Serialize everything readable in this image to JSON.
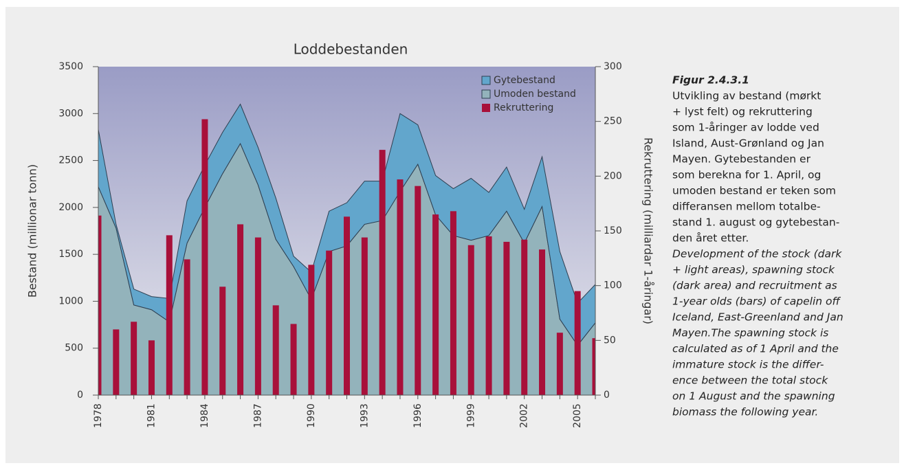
{
  "chart_data": {
    "type": "combo",
    "title": "Loddebestanden",
    "y_label": "Bestand (millionar tonn)",
    "y2_label": "Rekruttering (milliardar 1-åringar)",
    "categories": [
      "1978",
      null,
      null,
      "1981",
      null,
      null,
      "1984",
      null,
      null,
      "1987",
      null,
      null,
      "1990",
      null,
      null,
      "1993",
      null,
      null,
      "1996",
      null,
      null,
      "1999",
      null,
      null,
      "2002",
      null,
      null,
      "2005",
      null
    ],
    "series": [
      {
        "name": "Gytebestand",
        "type": "area",
        "color": "#62a6cc",
        "values": [
          610,
          40,
          170,
          140,
          250,
          450,
          450,
          440,
          420,
          400,
          440,
          110,
          290,
          430,
          460,
          460,
          420,
          830,
          420,
          420,
          500,
          660,
          460,
          470,
          360,
          530,
          720,
          450,
          410
        ]
      },
      {
        "name": "Umoden bestand",
        "type": "area",
        "color": "#93b3bb",
        "values": [
          2220,
          1780,
          960,
          910,
          780,
          1620,
          2000,
          2360,
          2680,
          2240,
          1660,
          1370,
          1020,
          1530,
          1590,
          1820,
          1860,
          2170,
          2460,
          1920,
          1700,
          1650,
          1700,
          1960,
          1620,
          2010,
          810,
          530,
          770
        ]
      },
      {
        "name": "Rekruttering",
        "type": "bar",
        "axis": "y2",
        "color": "#a8103a",
        "values": [
          164,
          60,
          67,
          50,
          146,
          124,
          252,
          99,
          156,
          144,
          82,
          65,
          119,
          132,
          163,
          144,
          224,
          197,
          191,
          165,
          168,
          137,
          145,
          140,
          142,
          133,
          57,
          95,
          52
        ]
      }
    ],
    "ylim": [
      0,
      3500
    ],
    "yticks": [
      0,
      500,
      1000,
      1500,
      2000,
      2500,
      3000,
      3500
    ],
    "y2lim": [
      0,
      300
    ],
    "y2ticks": [
      0,
      50,
      100,
      150,
      200,
      250,
      300
    ],
    "legend": "upper right"
  },
  "caption": {
    "label": "Figur 2.4.3.1",
    "norwegian": [
      "Utvikling av bestand (mørkt",
      "+ lyst felt) og rekruttering",
      "som 1-åringer av lodde ved",
      "Island, Aust-Grønland og Jan",
      "Mayen. Gytebestanden er",
      "som berekna for 1. April, og",
      "umoden bestand er teken som",
      "differansen mellom totalbe-",
      "stand 1. august og gytebestan-",
      "den året etter."
    ],
    "english": [
      "Development of the stock (dark",
      "+ light areas), spawning stock",
      "(dark area) and recruitment as",
      "1-year olds (bars) of capelin off",
      "Iceland, East-Greenland and Jan",
      "Mayen.The spawning stock is",
      "calculated as of 1 April and the",
      "immature stock is the differ-",
      "ence between the total stock",
      "on 1 August and the spawning",
      "biomass the following year."
    ]
  }
}
